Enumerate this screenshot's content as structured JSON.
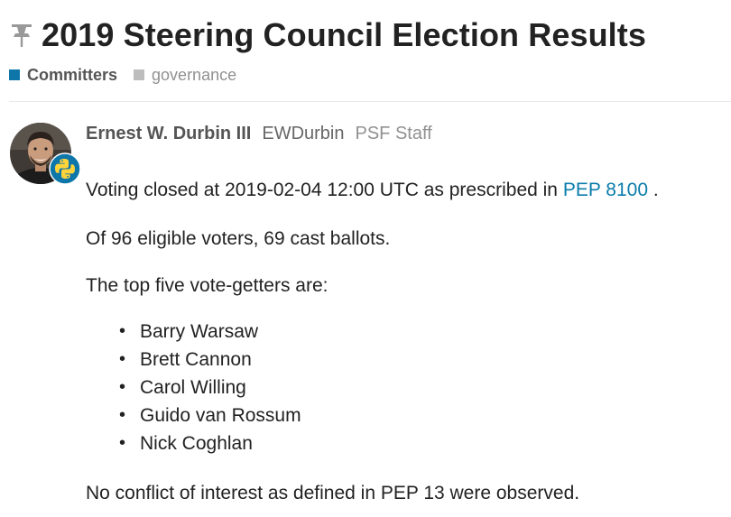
{
  "topic": {
    "title": "2019 Steering Council Election Results",
    "pinned_icon": "pin-icon"
  },
  "categories": [
    {
      "label": "Committers",
      "color": "#0e76a8"
    },
    {
      "label": "governance",
      "color": "#bdbdbd"
    }
  ],
  "post": {
    "author": {
      "full_name": "Ernest W. Durbin III",
      "username": "EWDurbin",
      "title": "PSF Staff",
      "avatar_icon": "user-avatar",
      "badge_icon": "python-logo-icon"
    },
    "p1_before": "Voting closed at 2019-02-04 12:00 UTC as prescribed in",
    "p1_link": "PEP 8100",
    "p1_after": ".",
    "p2": "Of 96 eligible voters, 69 cast ballots.",
    "p3": "The top five vote-getters are:",
    "winners": [
      "Barry Warsaw",
      "Brett Cannon",
      "Carol Willing",
      "Guido van Rossum",
      "Nick Coghlan"
    ],
    "p4": "No conflict of interest as defined in PEP 13 were observed."
  },
  "colors": {
    "link": "#0a7dab",
    "badge_blue": "#306998",
    "badge_yellow": "#ffd43b"
  }
}
